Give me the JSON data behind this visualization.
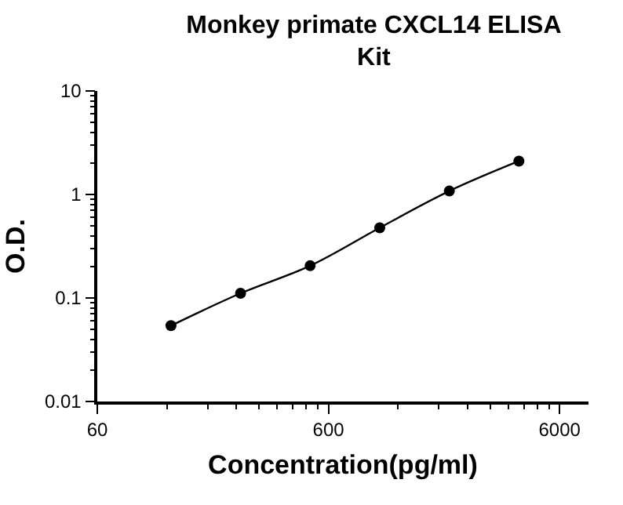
{
  "chart_data": {
    "type": "line",
    "title": "Monkey primate CXCL14 ELISA Kit",
    "xlabel": "Concentration(pg/ml)",
    "ylabel": "O.D.",
    "x": [
      125,
      250,
      500,
      1000,
      2000,
      4000
    ],
    "series": [
      {
        "color": "#000000",
        "values": [
          0.054,
          0.111,
          0.205,
          0.477,
          1.08,
          2.1
        ]
      }
    ],
    "log": "xy",
    "xlim": [
      60,
      8000
    ],
    "xticks": [
      60,
      600,
      6000
    ],
    "ylim": [
      0.01,
      10
    ],
    "yticks": [
      0.01,
      0.1,
      1,
      10
    ],
    "marker": "circle",
    "line_style": "solid",
    "grid": false
  }
}
